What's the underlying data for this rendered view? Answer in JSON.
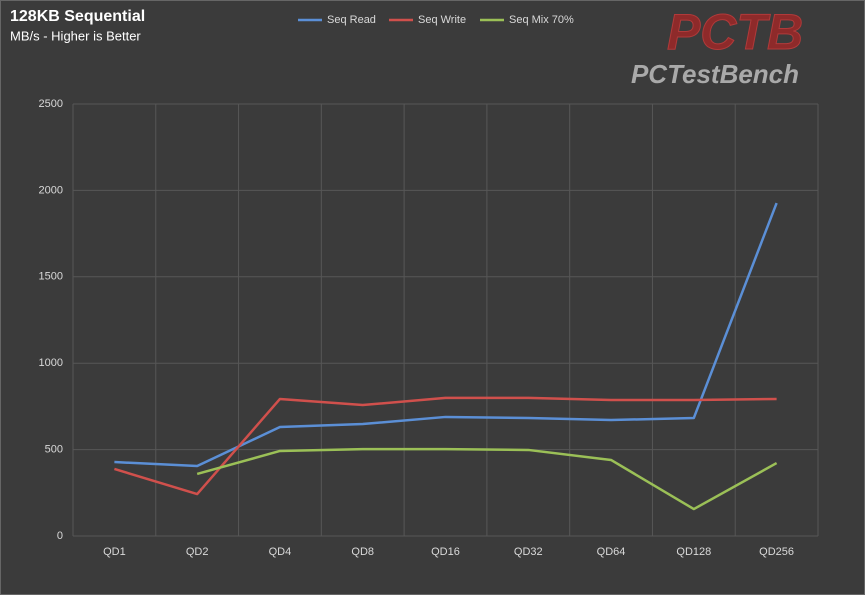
{
  "chart_data": {
    "type": "line",
    "title": "128KB Sequential",
    "subtitle": "MB/s - Higher is Better",
    "categories": [
      "QD1",
      "QD2",
      "QD4",
      "QD8",
      "QD16",
      "QD32",
      "QD64",
      "QD128",
      "QD256"
    ],
    "series": [
      {
        "name": "Seq Read",
        "color": "#5b8fd6",
        "values": [
          428,
          405,
          631,
          648,
          689,
          683,
          671,
          683,
          1927
        ]
      },
      {
        "name": "Seq Write",
        "color": "#d0504c",
        "values": [
          388,
          243,
          793,
          758,
          799,
          799,
          787,
          787,
          793
        ]
      },
      {
        "name": "Seq Mix 70%",
        "color": "#9bc057",
        "values": [
          null,
          359,
          492,
          503,
          503,
          498,
          440,
          156,
          422
        ]
      }
    ],
    "ylim": [
      0,
      2500
    ],
    "yticks": [
      0,
      500,
      1000,
      1500,
      2000,
      2500
    ],
    "grid": true,
    "legend": "top"
  },
  "logo": {
    "mark": "PCTB",
    "name": "PCTestBench"
  }
}
